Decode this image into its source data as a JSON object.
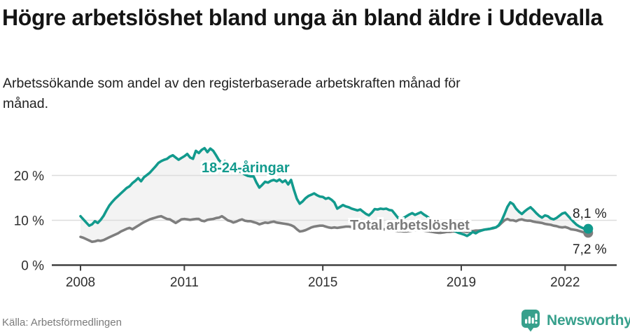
{
  "header": {
    "title": "Högre arbetslöshet bland unga än bland äldre i Uddevalla",
    "subtitle": "Arbetssökande som andel av den registerbaserade arbetskraften månad för månad."
  },
  "footer": {
    "source": "Källa: Arbetsförmedlingen",
    "brand": "Newsworthy",
    "brand_color": "#37a08c"
  },
  "chart_data": {
    "type": "line",
    "title": "Arbetssökande som andel av den registerbaserade arbetskraften månad för månad",
    "x_unit": "month",
    "x_start_year": 2008,
    "x_end_label_note": "series end around autumn 2022",
    "ylim": [
      0,
      27
    ],
    "grid": "horizontal",
    "fill_between_series": true,
    "fill_color": "#f3f3f3",
    "yticks": [
      {
        "label": "0 %",
        "value": 0
      },
      {
        "label": "10 %",
        "value": 10
      },
      {
        "label": "20 %",
        "value": 20
      }
    ],
    "xticks": [
      {
        "label": "2008",
        "year": 2008
      },
      {
        "label": "2011",
        "year": 2011
      },
      {
        "label": "2015",
        "year": 2015
      },
      {
        "label": "2019",
        "year": 2019
      },
      {
        "label": "2022",
        "year": 2022
      }
    ],
    "series": [
      {
        "name": "18-24-åringar",
        "color": "#129a8d",
        "end_label": "8,1 %",
        "end_value": 8.1,
        "values": [
          10.9,
          10.2,
          9.5,
          8.8,
          9.1,
          9.8,
          9.4,
          10.1,
          11.0,
          12.2,
          13.3,
          14.1,
          14.8,
          15.4,
          16.0,
          16.6,
          17.2,
          17.6,
          18.3,
          18.8,
          19.4,
          18.7,
          19.6,
          20.1,
          20.6,
          21.3,
          22.0,
          22.8,
          23.2,
          23.5,
          23.7,
          24.2,
          24.5,
          24.0,
          23.5,
          23.9,
          24.3,
          24.8,
          24.0,
          23.7,
          25.5,
          25.0,
          25.7,
          26.1,
          25.2,
          26.0,
          25.5,
          24.5,
          23.4,
          22.8,
          23.2,
          22.4,
          21.8,
          21.3,
          21.7,
          21.0,
          20.6,
          20.2,
          19.9,
          19.8,
          19.8,
          18.4,
          17.3,
          17.9,
          18.6,
          18.4,
          18.8,
          19.0,
          18.7,
          19.1,
          18.5,
          18.9,
          18.0,
          19.0,
          16.8,
          14.8,
          13.7,
          14.2,
          14.9,
          15.4,
          15.7,
          16.0,
          15.6,
          15.3,
          15.2,
          14.8,
          15.0,
          14.6,
          14.0,
          12.6,
          13.0,
          13.4,
          13.1,
          12.9,
          12.6,
          12.4,
          12.2,
          12.4,
          11.9,
          11.4,
          11.1,
          11.7,
          12.5,
          12.4,
          12.6,
          12.5,
          12.6,
          12.3,
          12.2,
          11.4,
          10.6,
          10.2,
          10.5,
          10.9,
          11.3,
          11.6,
          11.2,
          11.5,
          11.8,
          11.3,
          10.9,
          10.4,
          10.0,
          9.6,
          9.2,
          8.9,
          8.6,
          8.3,
          8.0,
          7.8,
          7.5,
          7.2,
          7.0,
          6.8,
          6.5,
          6.9,
          7.4,
          7.1,
          7.5,
          7.7,
          7.9,
          8.0,
          8.1,
          8.3,
          8.4,
          8.9,
          9.9,
          11.4,
          13.0,
          14.0,
          13.6,
          12.6,
          11.9,
          11.4,
          12.0,
          12.5,
          12.9,
          12.3,
          11.6,
          11.0,
          10.6,
          11.1,
          10.9,
          10.4,
          10.2,
          10.5,
          11.0,
          11.5,
          11.7,
          11.0,
          10.3,
          9.6,
          9.0,
          8.6,
          8.3,
          8.0,
          8.1
        ]
      },
      {
        "name": "Total arbetslöshet",
        "color": "#7e7e7e",
        "end_label": "7,2 %",
        "end_value": 7.2,
        "values": [
          6.3,
          6.1,
          5.8,
          5.5,
          5.2,
          5.3,
          5.5,
          5.4,
          5.6,
          5.9,
          6.2,
          6.5,
          6.8,
          7.1,
          7.5,
          7.8,
          8.1,
          8.3,
          8.0,
          8.4,
          8.8,
          9.2,
          9.6,
          9.9,
          10.2,
          10.4,
          10.6,
          10.8,
          10.9,
          10.6,
          10.3,
          10.2,
          9.8,
          9.4,
          9.8,
          10.2,
          10.3,
          10.2,
          10.1,
          10.2,
          10.3,
          10.3,
          9.9,
          9.8,
          10.1,
          10.2,
          10.3,
          10.5,
          10.6,
          10.9,
          10.5,
          10.0,
          9.8,
          9.5,
          9.7,
          10.0,
          10.2,
          9.9,
          9.8,
          9.8,
          9.6,
          9.4,
          9.1,
          9.3,
          9.5,
          9.4,
          9.6,
          9.7,
          9.5,
          9.4,
          9.3,
          9.2,
          9.1,
          8.9,
          8.6,
          8.0,
          7.5,
          7.6,
          7.8,
          8.1,
          8.4,
          8.6,
          8.7,
          8.8,
          8.8,
          8.6,
          8.4,
          8.3,
          8.4,
          8.3,
          8.4,
          8.5,
          8.6,
          8.6,
          8.5,
          8.4,
          8.3,
          8.2,
          8.1,
          8.0,
          7.9,
          7.9,
          8.0,
          8.1,
          8.1,
          8.0,
          7.9,
          7.9,
          7.8,
          7.7,
          7.6,
          7.6,
          7.5,
          7.5,
          7.6,
          7.7,
          7.7,
          7.8,
          7.8,
          7.7,
          7.6,
          7.5,
          7.4,
          7.3,
          7.2,
          7.2,
          7.3,
          7.4,
          7.4,
          7.5,
          7.5,
          7.6,
          7.6,
          7.5,
          7.4,
          7.5,
          7.6,
          7.7,
          7.7,
          7.8,
          7.9,
          8.0,
          8.1,
          8.2,
          8.4,
          8.8,
          9.4,
          10.0,
          10.3,
          10.0,
          10.0,
          9.8,
          10.1,
          10.2,
          10.0,
          9.9,
          9.9,
          9.7,
          9.6,
          9.5,
          9.4,
          9.2,
          9.1,
          9.0,
          8.8,
          8.7,
          8.5,
          8.4,
          8.5,
          8.3,
          8.0,
          7.9,
          7.8,
          7.6,
          7.4,
          7.2,
          7.2
        ]
      }
    ]
  }
}
